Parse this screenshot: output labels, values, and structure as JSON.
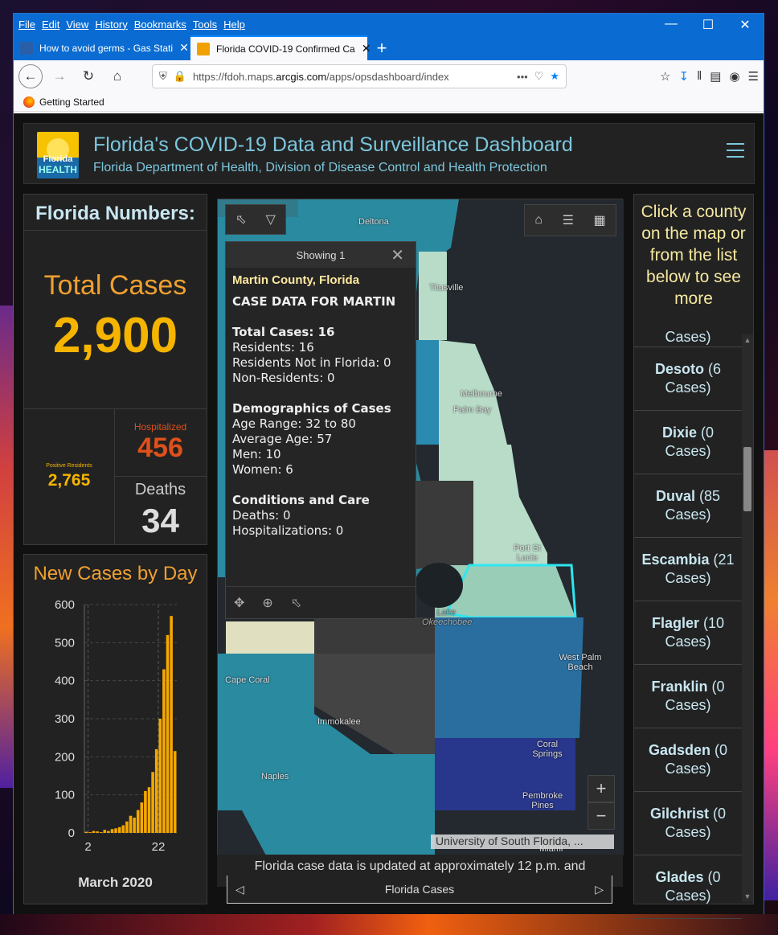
{
  "browser": {
    "menu": [
      "File",
      "Edit",
      "View",
      "History",
      "Bookmarks",
      "Tools",
      "Help"
    ],
    "tabs": [
      {
        "title": "How to avoid germs - Gas Stati"
      },
      {
        "title": "Florida COVID-19 Confirmed Ca"
      }
    ],
    "url_prefix": "https://fdoh.maps.",
    "url_domain": "arcgis.com",
    "url_path": "/apps/opsdashboard/index",
    "bookmark": "Getting Started"
  },
  "dashboard": {
    "title": "Florida's COVID-19 Data and Surveillance Dashboard",
    "subtitle": "Florida Department of Health, Division of Disease Control and Health Protection",
    "logo_line1": "Florida",
    "logo_line2": "HEALTH"
  },
  "numbers": {
    "title": "Florida Numbers:",
    "total_label": "Total Cases",
    "total_value": "2,900",
    "positive_label": "Positive Residents",
    "positive_value": "2,765",
    "hosp_label": "Hospitalized",
    "hosp_value": "456",
    "deaths_label": "Deaths",
    "deaths_value": "34"
  },
  "chart_data": {
    "type": "bar",
    "title": "New Cases by Day",
    "xlabel": "March 2020",
    "ylabel": "",
    "ylim": [
      0,
      600
    ],
    "yticks": [
      0,
      100,
      200,
      300,
      400,
      500,
      600
    ],
    "xtick_labels": [
      "2",
      "22"
    ],
    "values": [
      3,
      2,
      5,
      4,
      2,
      8,
      5,
      10,
      12,
      15,
      20,
      30,
      45,
      40,
      60,
      80,
      110,
      120,
      160,
      220,
      300,
      430,
      520,
      570,
      215
    ],
    "color": "#f5a800"
  },
  "map": {
    "labels": [
      "Deltona",
      "Titusville",
      "Melbourne",
      "Palm Bay",
      "Port St Lucie",
      "Lake Okeechobee",
      "West Palm Beach",
      "Cape Coral",
      "Immokalee",
      "Coral Springs",
      "Naples",
      "Pembroke Pines",
      "Miami"
    ],
    "attribution": "University of South Florida, ...",
    "footer": "Florida case data is updated at approximately 12 p.m. and",
    "carousel": "Florida Cases"
  },
  "popup": {
    "header": "Showing 1",
    "county": "Martin County, Florida",
    "heading": "CASE DATA FOR MARTIN",
    "total": "Total Cases: 16",
    "residents": "Residents: 16",
    "res_not_fl": "Residents Not in Florida: 0",
    "non_res": "Non-Residents: 0",
    "demo_title": "Demographics of Cases",
    "age_range": "Age Range: 32 to 80",
    "avg_age": "Average Age: 57",
    "men": "Men: 10",
    "women": "Women: 6",
    "cond_title": "Conditions and Care",
    "deaths": "Deaths: 0",
    "hosp": "Hospitalizations: 0"
  },
  "county_list": {
    "title": "Click a county on the map or from the list below to see more",
    "partial_top": "Cases)",
    "items": [
      {
        "name": "Desoto",
        "cases": "(6 Cases)"
      },
      {
        "name": "Dixie",
        "cases": "(0 Cases)"
      },
      {
        "name": "Duval",
        "cases": "(85 Cases)"
      },
      {
        "name": "Escambia",
        "cases": "(21 Cases)"
      },
      {
        "name": "Flagler",
        "cases": "(10 Cases)"
      },
      {
        "name": "Franklin",
        "cases": "(0 Cases)"
      },
      {
        "name": "Gadsden",
        "cases": "(0 Cases)"
      },
      {
        "name": "Gilchrist",
        "cases": "(0 Cases)"
      },
      {
        "name": "Glades",
        "cases": "(0 Cases)"
      }
    ]
  }
}
